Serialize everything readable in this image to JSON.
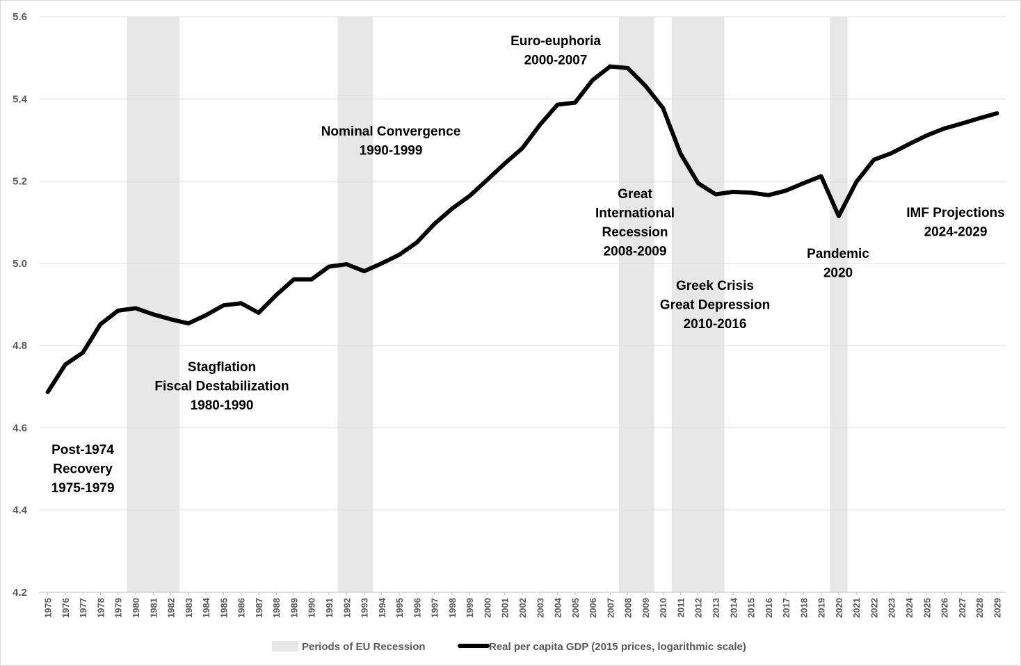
{
  "chart_data": {
    "type": "line",
    "title": "",
    "xlabel": "",
    "ylabel": "",
    "ylim": [
      4.2,
      5.6
    ],
    "yticks": [
      "4.2",
      "4.4",
      "4.6",
      "4.8",
      "5.0",
      "5.2",
      "5.4",
      "5.6"
    ],
    "grid": true,
    "categories": [
      "1975",
      "1976",
      "1977",
      "1978",
      "1979",
      "1980",
      "1981",
      "1982",
      "1983",
      "1984",
      "1985",
      "1986",
      "1987",
      "1988",
      "1989",
      "1990",
      "1991",
      "1992",
      "1993",
      "1994",
      "1995",
      "1996",
      "1997",
      "1998",
      "1999",
      "2000",
      "2001",
      "2002",
      "2003",
      "2004",
      "2005",
      "2006",
      "2007",
      "2008",
      "2009",
      "2010",
      "2011",
      "2012",
      "2013",
      "2014",
      "2015",
      "2016",
      "2017",
      "2018",
      "2019",
      "2020",
      "2021",
      "2022",
      "2023",
      "2024",
      "2025",
      "2026",
      "2027",
      "2028",
      "2029"
    ],
    "series": [
      {
        "name": "Real per capita GDP (2015 prices, logarithmic scale)",
        "color": "#000000",
        "values": [
          4.687,
          4.754,
          4.783,
          4.852,
          4.885,
          4.891,
          4.876,
          4.864,
          4.854,
          4.874,
          4.898,
          4.903,
          4.88,
          4.923,
          4.961,
          4.961,
          4.992,
          4.998,
          4.981,
          5.0,
          5.021,
          5.051,
          5.096,
          5.133,
          5.164,
          5.203,
          5.243,
          5.28,
          5.337,
          5.386,
          5.391,
          5.446,
          5.479,
          5.475,
          5.432,
          5.378,
          5.267,
          5.195,
          5.168,
          5.174,
          5.172,
          5.166,
          5.177,
          5.195,
          5.212,
          5.115,
          5.198,
          5.252,
          5.268,
          5.29,
          5.311,
          5.328,
          5.34,
          5.353,
          5.365
        ]
      }
    ],
    "recession_periods": [
      {
        "start": "1980",
        "end": "1982"
      },
      {
        "start": "1992",
        "end": "1993"
      },
      {
        "start": "2008",
        "end": "2009"
      },
      {
        "start": "2011",
        "end": "2013"
      },
      {
        "start": "2020",
        "end": "2020"
      }
    ],
    "annotations": [
      {
        "id": "post-1974",
        "lines": [
          "Post-1974",
          "Recovery",
          "1975-1979"
        ]
      },
      {
        "id": "stagflation",
        "lines": [
          "Stagflation",
          "Fiscal Destabilization",
          "1980-1990"
        ]
      },
      {
        "id": "nominal-convergence",
        "lines": [
          "Nominal Convergence",
          "1990-1999"
        ]
      },
      {
        "id": "euro-euphoria",
        "lines": [
          "Euro-euphoria",
          "2000-2007"
        ]
      },
      {
        "id": "great-international-recession",
        "lines": [
          "Great",
          "International",
          "Recession",
          "2008-2009"
        ]
      },
      {
        "id": "greek-crisis",
        "lines": [
          "Greek Crisis",
          "Great Depression",
          "2010-2016"
        ]
      },
      {
        "id": "pandemic",
        "lines": [
          "Pandemic",
          "2020"
        ]
      },
      {
        "id": "imf-projections",
        "lines": [
          "IMF Projections",
          "2024-2029"
        ]
      }
    ],
    "legend": {
      "position": "bottom",
      "items": [
        {
          "label": "Periods of EU Recession",
          "color": "#e7e7e7"
        },
        {
          "label": "Real per capita GDP (2015 prices, logarithmic scale)",
          "color": "#000000"
        }
      ]
    }
  }
}
